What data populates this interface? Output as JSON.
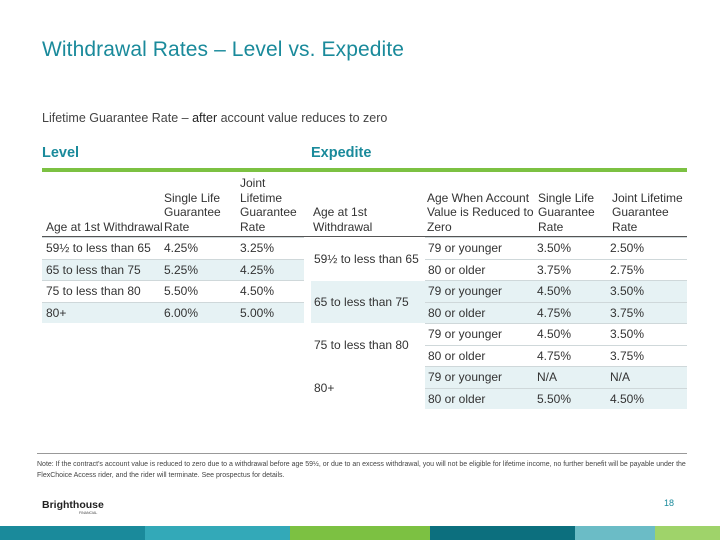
{
  "title": "Withdrawal Rates – Level vs. Expedite",
  "subtitle": {
    "prefix": "Lifetime Guarantee Rate – ",
    "bold": "after",
    "suffix": " account value reduces to zero"
  },
  "level": {
    "label": "Level",
    "headers": [
      "Age at 1st Withdrawal",
      "Single Life Guarantee Rate",
      "Joint Lifetime Guarantee Rate"
    ],
    "rows": [
      [
        "59½ to less than 65",
        "4.25%",
        "3.25%"
      ],
      [
        "65 to less than 75",
        "5.25%",
        "4.25%"
      ],
      [
        "75 to less than 80",
        "5.50%",
        "4.50%"
      ],
      [
        "80+",
        "6.00%",
        "5.00%"
      ]
    ]
  },
  "expedite": {
    "label": "Expedite",
    "headers": [
      "Age at 1st Withdrawal",
      "Age When Account Value is Reduced to Zero",
      "Single Life Guarantee Rate",
      "Joint Lifetime Guarantee Rate"
    ],
    "groups": [
      {
        "age": "59½ to less than 65",
        "rows": [
          [
            "79 or younger",
            "3.50%",
            "2.50%"
          ],
          [
            "80 or older",
            "3.75%",
            "2.75%"
          ]
        ]
      },
      {
        "age": "65 to less than 75",
        "rows": [
          [
            "79 or younger",
            "4.50%",
            "3.50%"
          ],
          [
            "80 or older",
            "4.75%",
            "3.75%"
          ]
        ]
      },
      {
        "age": "75 to less than 80",
        "rows": [
          [
            "79 or younger",
            "4.50%",
            "3.50%"
          ],
          [
            "80 or older",
            "4.75%",
            "3.75%"
          ]
        ]
      },
      {
        "age": "80+",
        "rows": [
          [
            "79 or younger",
            "N/A",
            "N/A"
          ],
          [
            "80 or older",
            "5.50%",
            "4.50%"
          ]
        ]
      }
    ]
  },
  "note": "Note: If the contract's account value is reduced to zero due to a withdrawal before age 59½, or due to an excess withdrawal, you will not be eligible for lifetime income, no further benefit will be payable under the FlexChoice Access rider, and the rider will terminate. See prospectus for details.",
  "logo": {
    "name": "Brighthouse",
    "sub": "FINANCIAL"
  },
  "page_number": "18",
  "colors": {
    "accent": "#1a8a9b",
    "rule": "#7cc142",
    "shade": "#e6f2f4",
    "footer": [
      "#1a8a9b",
      "#33a9b8",
      "#7cc142",
      "#0c6f7e",
      "#6bbcc6",
      "#9fd36a"
    ]
  }
}
